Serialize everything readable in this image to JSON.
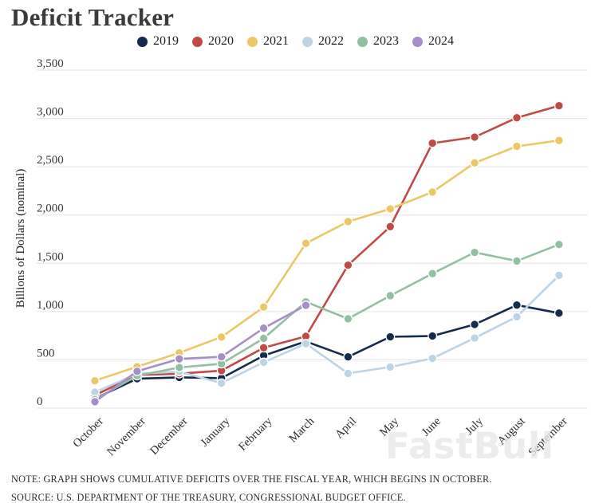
{
  "title": "Deficit Tracker",
  "watermark": "FastBull",
  "notes": {
    "note": "NOTE: GRAPH SHOWS CUMULATIVE DEFICITS OVER THE FISCAL YEAR, WHICH BEGINS IN OCTOBER.",
    "source": "SOURCE: U.S. DEPARTMENT OF THE TREASURY, CONGRESSIONAL BUDGET OFFICE."
  },
  "colors": {
    "grid": "#e4e4e4",
    "title_text": "#3b3b3b",
    "axis_text": "#2b2b2b"
  },
  "chart_data": {
    "type": "line",
    "title": "Deficit Tracker",
    "xlabel": "",
    "ylabel": "Billions of Dollars (nominal)",
    "grid": true,
    "legend_position": "top",
    "ylim": [
      0,
      3500
    ],
    "categories": [
      "October",
      "November",
      "December",
      "January",
      "February",
      "March",
      "April",
      "May",
      "June",
      "July",
      "August",
      "September"
    ],
    "y_ticks": [
      {
        "value": 0,
        "label": "0"
      },
      {
        "value": 500,
        "label": "500"
      },
      {
        "value": 1000,
        "label": "1,000"
      },
      {
        "value": 1500,
        "label": "1,500"
      },
      {
        "value": 2000,
        "label": "2,000"
      },
      {
        "value": 2500,
        "label": "2,500"
      },
      {
        "value": 3000,
        "label": "3,000"
      },
      {
        "value": 3500,
        "label": "3,500"
      }
    ],
    "series": [
      {
        "name": "2019",
        "color": "#152a4c",
        "values": [
          100,
          305,
          319,
          310,
          544,
          691,
          531,
          739,
          747,
          867,
          1067,
          984
        ]
      },
      {
        "name": "2020",
        "color": "#c04a44",
        "values": [
          134,
          343,
          357,
          389,
          625,
          744,
          1481,
          1880,
          2744,
          2807,
          3007,
          3132
        ]
      },
      {
        "name": "2021",
        "color": "#ecc765",
        "values": [
          284,
          429,
          573,
          736,
          1047,
          1706,
          1932,
          2064,
          2238,
          2540,
          2711,
          2772
        ]
      },
      {
        "name": "2022",
        "color": "#bdd4e5",
        "values": [
          165,
          356,
          378,
          259,
          475,
          668,
          360,
          426,
          515,
          726,
          946,
          1375
        ]
      },
      {
        "name": "2023",
        "color": "#93bfa2",
        "values": [
          88,
          336,
          421,
          460,
          722,
          1101,
          925,
          1165,
          1393,
          1613,
          1524,
          1695
        ]
      },
      {
        "name": "2024",
        "color": "#a78ec9",
        "values": [
          67,
          381,
          510,
          532,
          828,
          1065
        ]
      }
    ]
  }
}
